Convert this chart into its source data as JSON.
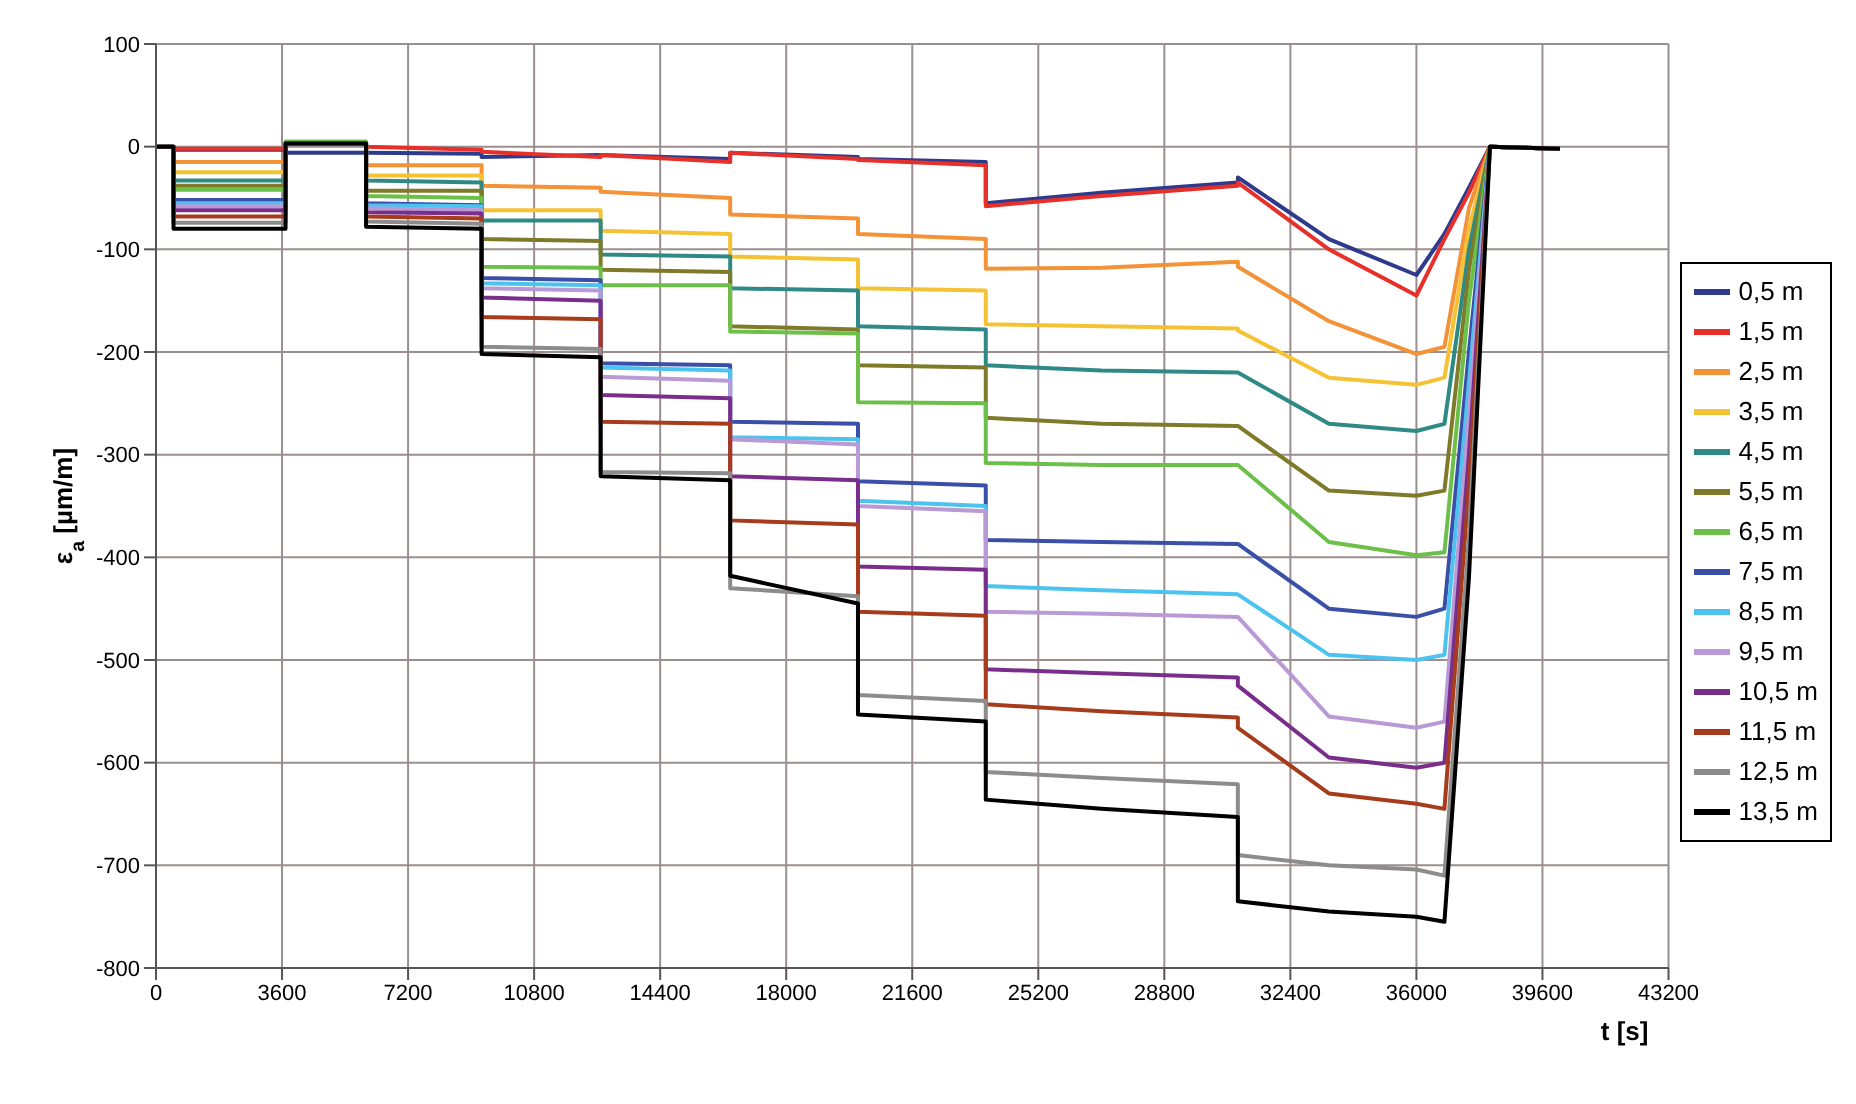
{
  "chart_data": {
    "type": "line",
    "xlabel": "t [s]",
    "ylabel": "ε$_{a}$ [µm/m]",
    "x": [
      0,
      500,
      500,
      3700,
      3700,
      6000,
      6000,
      9300,
      9300,
      12700,
      12700,
      16400,
      16400,
      20050,
      20050,
      23700,
      23700,
      27000,
      30900,
      30900,
      33500,
      36000,
      36800,
      37500,
      38100,
      40100
    ],
    "xlim": [
      0,
      43200
    ],
    "xticks": [
      0,
      3600,
      7200,
      10800,
      14400,
      18000,
      21600,
      25200,
      28800,
      32400,
      36000,
      39600,
      43200
    ],
    "ylim": [
      -800,
      100
    ],
    "yticks": [
      -800,
      -700,
      -600,
      -500,
      -400,
      -300,
      -200,
      -100,
      0,
      100
    ],
    "grid": true,
    "legend": "right",
    "marker": "none",
    "line_style": "solid",
    "series": [
      {
        "name": "0,5 m",
        "color": "#2e3a8c",
        "values": [
          0,
          0,
          -3,
          -3,
          -6,
          -6,
          -6,
          -7,
          -10,
          -8,
          -8,
          -12,
          -6,
          -10,
          -12,
          -15,
          -55,
          -45,
          -35,
          -30,
          -90,
          -125,
          -85,
          -40,
          0,
          -2
        ]
      },
      {
        "name": "1,5 m",
        "color": "#e8302a",
        "values": [
          0,
          0,
          -2,
          -2,
          3,
          3,
          0,
          -3,
          -5,
          -10,
          -8,
          -15,
          -6,
          -12,
          -13,
          -18,
          -58,
          -48,
          -38,
          -35,
          -100,
          -145,
          -90,
          -45,
          0,
          -2
        ]
      },
      {
        "name": "2,5 m",
        "color": "#f39237",
        "values": [
          0,
          0,
          -15,
          -15,
          3,
          3,
          -18,
          -18,
          -38,
          -40,
          -44,
          -50,
          -66,
          -70,
          -85,
          -90,
          -119,
          -118,
          -112,
          -117,
          -170,
          -202,
          -195,
          -60,
          0,
          -2
        ]
      },
      {
        "name": "3,5 m",
        "color": "#f5c233",
        "values": [
          0,
          0,
          -25,
          -25,
          3,
          3,
          -28,
          -28,
          -62,
          -62,
          -82,
          -85,
          -107,
          -110,
          -138,
          -140,
          -173,
          -175,
          -177,
          -179,
          -225,
          -232,
          -225,
          -80,
          0,
          -2
        ]
      },
      {
        "name": "4,5 m",
        "color": "#2f8a86",
        "values": [
          0,
          0,
          -33,
          -33,
          3,
          3,
          -33,
          -35,
          -72,
          -72,
          -105,
          -107,
          -138,
          -140,
          -175,
          -178,
          -213,
          -218,
          -220,
          -220,
          -270,
          -277,
          -270,
          -100,
          0,
          -2
        ]
      },
      {
        "name": "5,5 m",
        "color": "#7e7a2a",
        "values": [
          0,
          0,
          -38,
          -38,
          3,
          3,
          -43,
          -43,
          -90,
          -92,
          -120,
          -122,
          -175,
          -178,
          -213,
          -215,
          -264,
          -270,
          -272,
          -272,
          -335,
          -340,
          -335,
          -120,
          0,
          -2
        ]
      },
      {
        "name": "6,5 m",
        "color": "#6cc04a",
        "values": [
          0,
          0,
          -42,
          -42,
          5,
          5,
          -48,
          -50,
          -117,
          -118,
          -135,
          -135,
          -180,
          -182,
          -249,
          -250,
          -308,
          -310,
          -310,
          -310,
          -385,
          -398,
          -395,
          -150,
          0,
          -2
        ]
      },
      {
        "name": "7,5 m",
        "color": "#3a4fa8",
        "values": [
          0,
          0,
          -52,
          -52,
          3,
          3,
          -55,
          -57,
          -128,
          -130,
          -211,
          -213,
          -268,
          -270,
          -326,
          -330,
          -383,
          -385,
          -387,
          -387,
          -450,
          -458,
          -450,
          -200,
          0,
          -2
        ]
      },
      {
        "name": "8,5 m",
        "color": "#4cc3ee",
        "values": [
          0,
          0,
          -55,
          -55,
          3,
          3,
          -57,
          -58,
          -133,
          -135,
          -215,
          -218,
          -283,
          -285,
          -345,
          -350,
          -428,
          -432,
          -436,
          -436,
          -495,
          -500,
          -495,
          -230,
          0,
          -2
        ]
      },
      {
        "name": "9,5 m",
        "color": "#b99ad6",
        "values": [
          0,
          0,
          -58,
          -58,
          3,
          3,
          -60,
          -62,
          -138,
          -140,
          -224,
          -228,
          -285,
          -290,
          -350,
          -355,
          -453,
          -455,
          -458,
          -458,
          -555,
          -566,
          -560,
          -260,
          0,
          -2
        ]
      },
      {
        "name": "10,5 m",
        "color": "#7a2e8c",
        "values": [
          0,
          0,
          -62,
          -62,
          3,
          3,
          -64,
          -65,
          -147,
          -150,
          -242,
          -245,
          -321,
          -325,
          -409,
          -412,
          -509,
          -513,
          -517,
          -525,
          -595,
          -605,
          -600,
          -300,
          0,
          -2
        ]
      },
      {
        "name": "11,5 m",
        "color": "#a63c1c",
        "values": [
          0,
          0,
          -68,
          -68,
          3,
          3,
          -68,
          -70,
          -166,
          -168,
          -268,
          -270,
          -364,
          -368,
          -453,
          -457,
          -543,
          -550,
          -556,
          -566,
          -630,
          -640,
          -645,
          -330,
          0,
          -2
        ]
      },
      {
        "name": "12,5 m",
        "color": "#8c8c8c",
        "values": [
          0,
          0,
          -74,
          -74,
          3,
          3,
          -73,
          -75,
          -195,
          -197,
          -317,
          -318,
          -430,
          -438,
          -534,
          -540,
          -609,
          -615,
          -621,
          -690,
          -700,
          -704,
          -710,
          -380,
          0,
          -2
        ]
      },
      {
        "name": "13,5 m",
        "color": "#000000",
        "values": [
          0,
          0,
          -80,
          -80,
          3,
          3,
          -78,
          -80,
          -202,
          -205,
          -321,
          -325,
          -418,
          -445,
          -553,
          -560,
          -636,
          -645,
          -653,
          -735,
          -745,
          -750,
          -755,
          -420,
          0,
          -2
        ]
      }
    ]
  }
}
